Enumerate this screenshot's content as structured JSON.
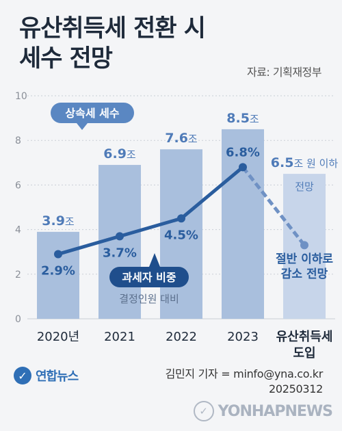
{
  "title_line1": "유산취득세 전환 시",
  "title_line2": "세수 전망",
  "source": "자료: 기획재정부",
  "colors": {
    "bar": "#a9bfdd",
    "bar_projected": "#c7d5ea",
    "line": "#2a5d9e",
    "line_dashed": "#6f91c4",
    "value_text": "#4f7bb8",
    "pct_text": "#2a5d9e"
  },
  "chart_data": {
    "type": "bar",
    "categories": [
      "2020년",
      "2021",
      "2022",
      "2023",
      "유산취득세\n도입"
    ],
    "values": [
      3.9,
      6.9,
      7.6,
      8.5,
      6.5
    ],
    "value_labels": [
      "3.9",
      "6.9",
      "7.6",
      "8.5",
      "6.5"
    ],
    "value_unit": "조",
    "projected_suffix": "원 이하",
    "projected_sub": "전망",
    "ylim": [
      0,
      10
    ],
    "yticks": [
      0,
      2,
      4,
      6,
      8,
      10
    ],
    "line_values": [
      2.9,
      3.7,
      4.5,
      6.8,
      3.3
    ],
    "line_labels": [
      "2.9%",
      "3.7%",
      "4.5%",
      "6.8%",
      ""
    ],
    "bar_legend": "상속세 세수",
    "line_legend": "과세자 비중",
    "line_legend_sub": "결정인원 대비",
    "end_annotation": [
      "절반 이하로",
      "감소 전망"
    ]
  },
  "logo": "연합뉴스",
  "credit_line1": "김민지 기자 = minfo@yna.co.kr",
  "credit_line2": "20250312",
  "watermark": "YONHAPNEWS"
}
